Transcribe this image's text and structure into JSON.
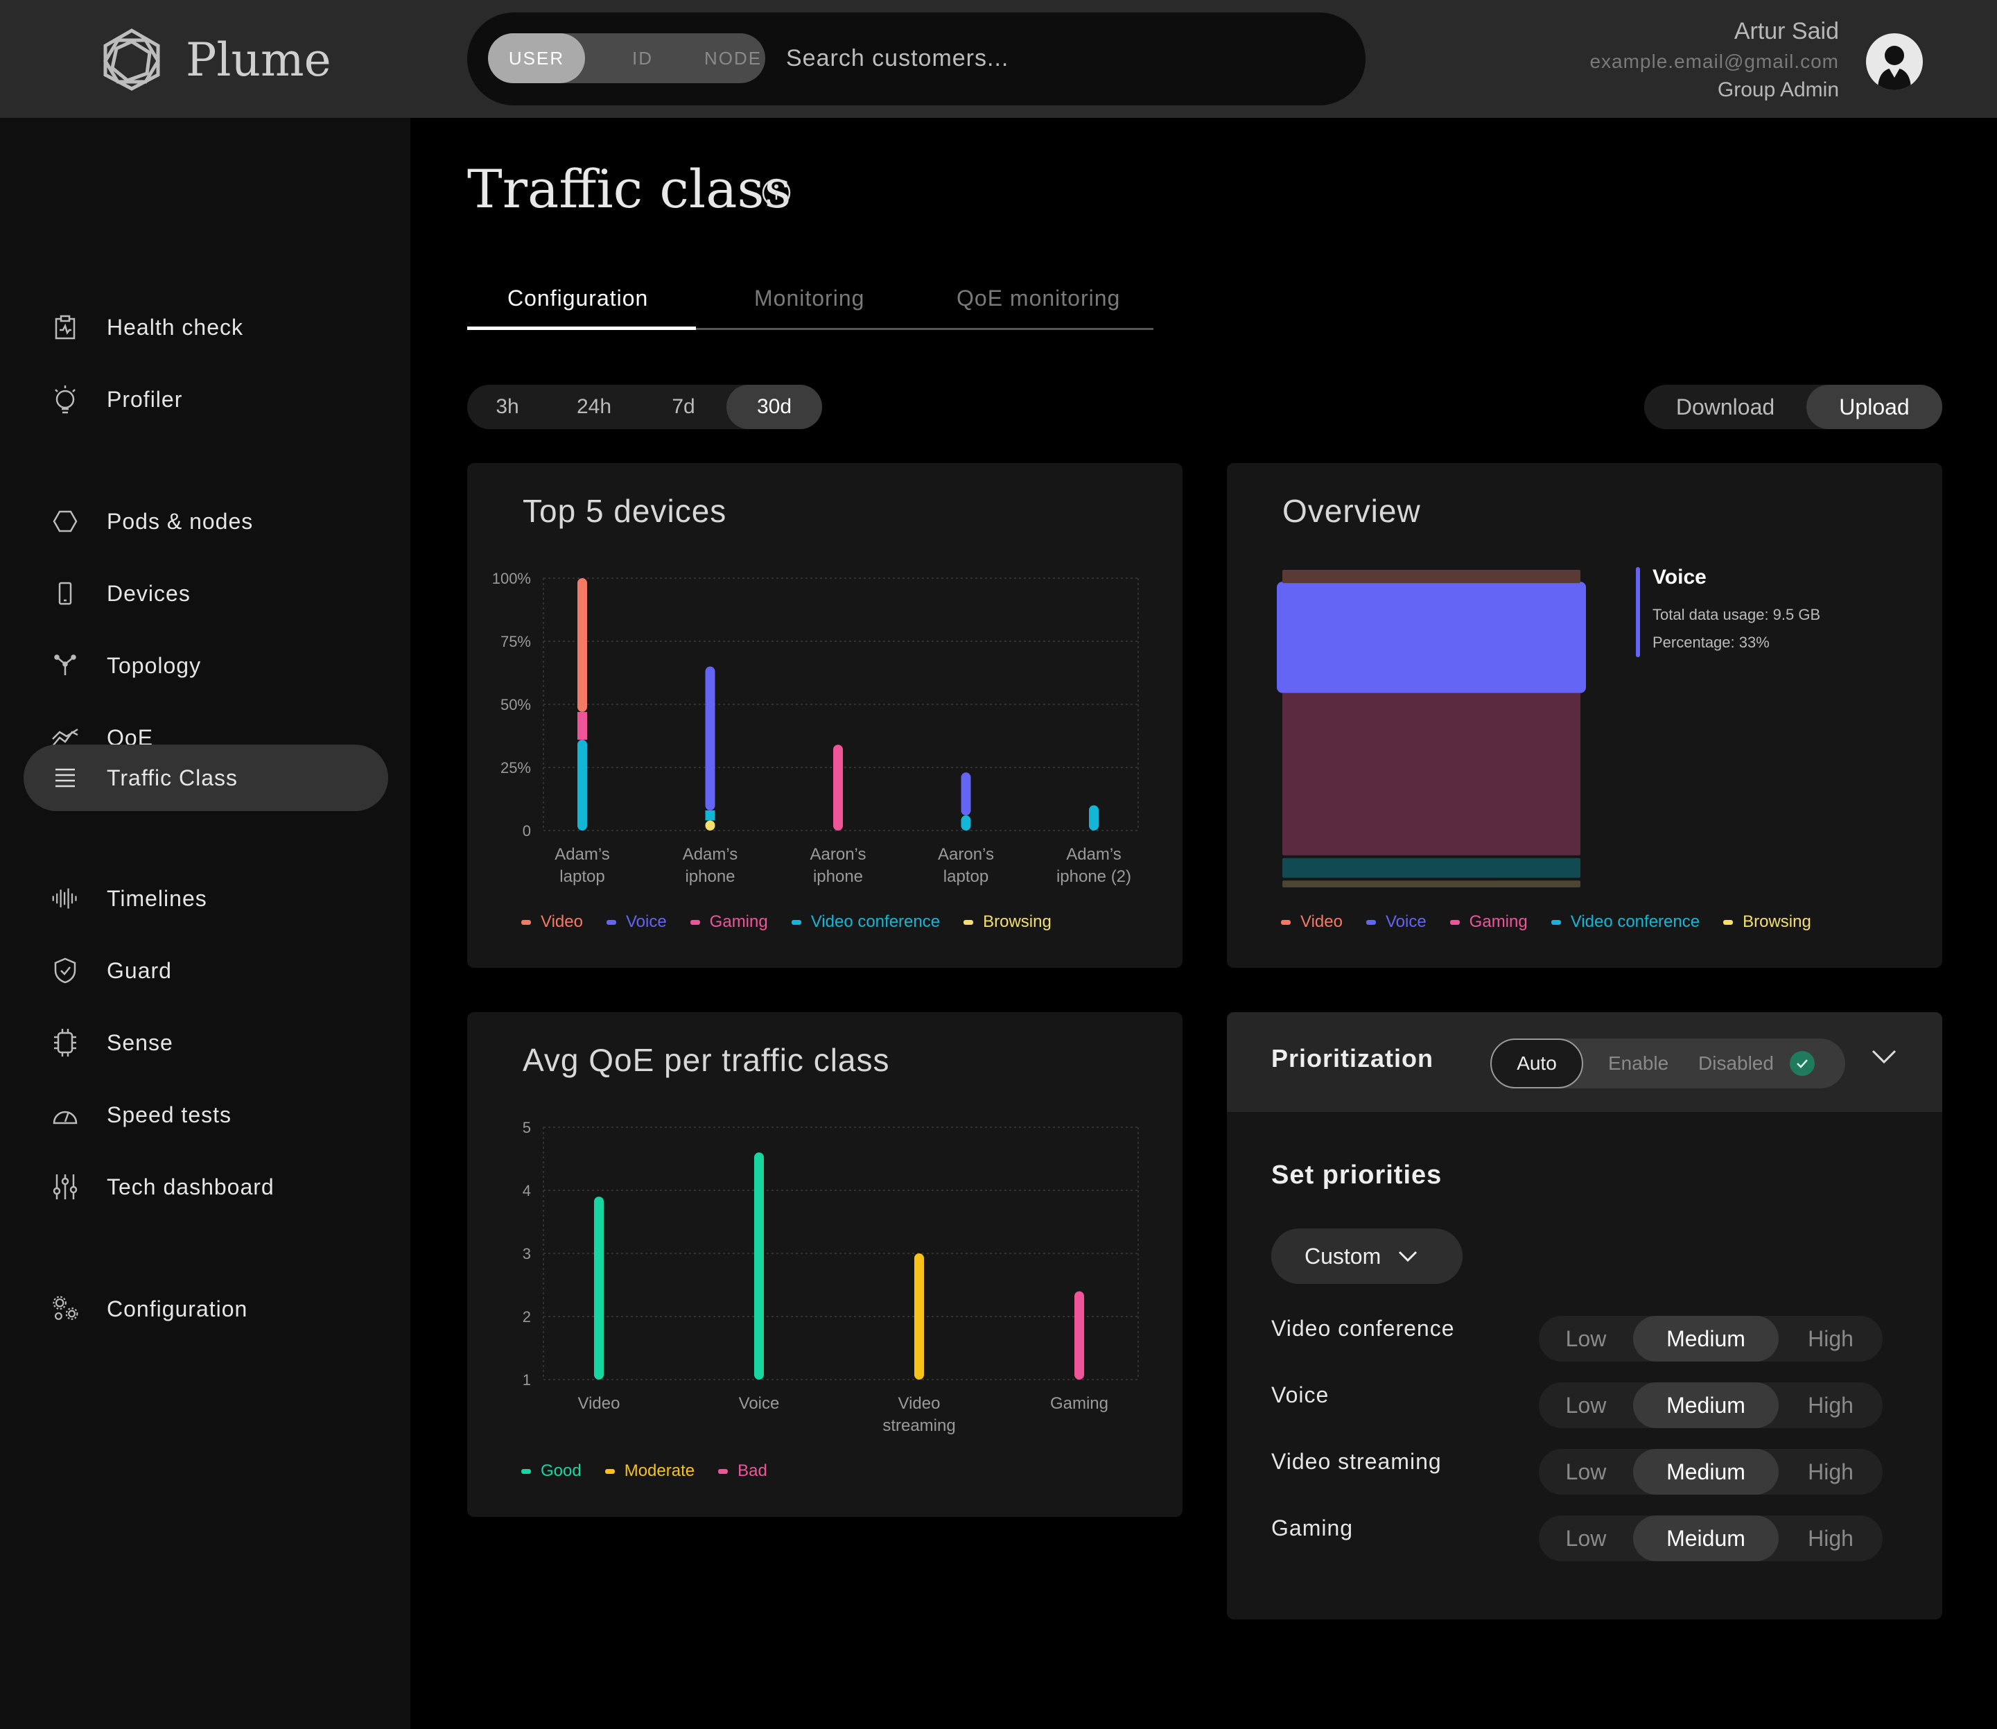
{
  "header": {
    "logo_text": "Plume",
    "search_modes": [
      "USER",
      "ID",
      "NODE"
    ],
    "search_placeholder": "Search customers...",
    "user_name": "Artur Said",
    "user_email": "example.email@gmail.com",
    "user_role": "Group Admin"
  },
  "sidebar": {
    "items": [
      {
        "label": "Health check",
        "icon": "clipboard-icon"
      },
      {
        "label": "Profiler",
        "icon": "bulb-icon"
      },
      {
        "label": "Pods & nodes",
        "icon": "hexagon-icon"
      },
      {
        "label": "Devices",
        "icon": "phone-icon"
      },
      {
        "label": "Topology",
        "icon": "topology-icon"
      },
      {
        "label": "QoE",
        "icon": "qoe-icon"
      },
      {
        "label": "Traffic Class",
        "icon": "list-icon",
        "active": true
      },
      {
        "label": "Timelines",
        "icon": "waveform-icon"
      },
      {
        "label": "Guard",
        "icon": "shield-icon"
      },
      {
        "label": "Sense",
        "icon": "chip-icon"
      },
      {
        "label": "Speed tests",
        "icon": "speedometer-icon"
      },
      {
        "label": "Tech dashboard",
        "icon": "sliders-icon"
      },
      {
        "label": "Configuration",
        "icon": "gears-icon"
      }
    ]
  },
  "main": {
    "title": "Traffic class",
    "tabs": [
      "Configuration",
      "Monitoring",
      "QoE monitoring"
    ],
    "ranges": [
      "3h",
      "24h",
      "7d",
      "30d"
    ],
    "active_range": "30d",
    "direction": [
      "Download",
      "Upload"
    ],
    "active_direction": "Upload"
  },
  "colors": {
    "video": "#f47a66",
    "voice": "#6464f5",
    "gaming": "#f0559a",
    "video_conference": "#14b6d8",
    "browsing": "#f5df6e",
    "good": "#18d6a0",
    "moderate": "#f7c21a",
    "bad": "#f0559a"
  },
  "top_devices": {
    "title": "Top 5 devices",
    "legend": [
      "Video",
      "Voice",
      "Gaming",
      "Video conference",
      "Browsing"
    ]
  },
  "overview": {
    "title": "Overview",
    "tooltip_title": "Voice",
    "tooltip_usage": "Total data usage: 9.5 GB",
    "tooltip_percentage": "Percentage: 33%",
    "legend": [
      "Video",
      "Voice",
      "Gaming",
      "Video conference",
      "Browsing"
    ]
  },
  "avg_qoe": {
    "title": "Avg QoE per traffic class",
    "legend": [
      "Good",
      "Moderate",
      "Bad"
    ]
  },
  "chart_data": [
    {
      "type": "bar",
      "title": "Top 5 devices",
      "stacked": true,
      "categories": [
        "Adam's laptop",
        "Adam's iphone",
        "Aaron's iphone",
        "Aaron's laptop",
        "Adam's iphone (2)"
      ],
      "category_lines": [
        [
          "Adam’s",
          "laptop"
        ],
        [
          "Adam’s",
          "iphone"
        ],
        [
          "Aaron’s",
          "iphone"
        ],
        [
          "Aaron’s",
          "laptop"
        ],
        [
          "Adam’s",
          "iphone (2)"
        ]
      ],
      "yticks": [
        "0",
        "25%",
        "50%",
        "75%",
        "100%"
      ],
      "ylim": [
        0,
        100
      ],
      "series": [
        {
          "name": "Browsing",
          "values": [
            0,
            4,
            0,
            0,
            0
          ]
        },
        {
          "name": "Video conference",
          "values": [
            36,
            4,
            0,
            6,
            10
          ]
        },
        {
          "name": "Gaming",
          "values": [
            11,
            0,
            34,
            0,
            0
          ]
        },
        {
          "name": "Voice",
          "values": [
            0,
            57,
            0,
            17,
            0
          ]
        },
        {
          "name": "Video",
          "values": [
            53,
            0,
            0,
            0,
            0
          ]
        }
      ],
      "legend_placement": "bottom",
      "grid": true
    },
    {
      "type": "bar",
      "title": "Overview",
      "stacked": true,
      "categories": [
        "Total"
      ],
      "series": [
        {
          "name": "Browsing",
          "values": [
            3
          ]
        },
        {
          "name": "Video conference",
          "values": [
            7
          ]
        },
        {
          "name": "Gaming",
          "values": [
            52
          ]
        },
        {
          "name": "Voice",
          "values": [
            33
          ]
        },
        {
          "name": "Video",
          "values": [
            5
          ]
        }
      ],
      "highlighted_series": "Voice",
      "legend_placement": "bottom"
    },
    {
      "type": "bar",
      "title": "Avg QoE per traffic class",
      "categories": [
        "Video",
        "Voice",
        "Video streaming",
        "Gaming"
      ],
      "category_lines": [
        [
          "Video"
        ],
        [
          "Voice"
        ],
        [
          "Video",
          "streaming"
        ],
        [
          "Gaming"
        ]
      ],
      "values": [
        3.9,
        4.6,
        3.0,
        2.4
      ],
      "value_classes": [
        "Good",
        "Good",
        "Moderate",
        "Bad"
      ],
      "yticks": [
        "1",
        "2",
        "3",
        "4",
        "5"
      ],
      "ylim": [
        1,
        5
      ],
      "legend_placement": "bottom",
      "grid": true
    }
  ],
  "prioritization": {
    "title": "Prioritization",
    "modes": [
      "Auto",
      "Enable",
      "Disabled"
    ],
    "set_priorities": "Set priorities",
    "preset": "Custom",
    "rows": [
      {
        "label": "Video conference",
        "low": "Low",
        "mid": "Medium",
        "high": "High"
      },
      {
        "label": "Voice",
        "low": "Low",
        "mid": "Medium",
        "high": "High"
      },
      {
        "label": "Video streaming",
        "low": "Low",
        "mid": "Medium",
        "high": "High"
      },
      {
        "label": "Gaming",
        "low": "Low",
        "mid": "Meidum",
        "high": "High"
      }
    ]
  }
}
